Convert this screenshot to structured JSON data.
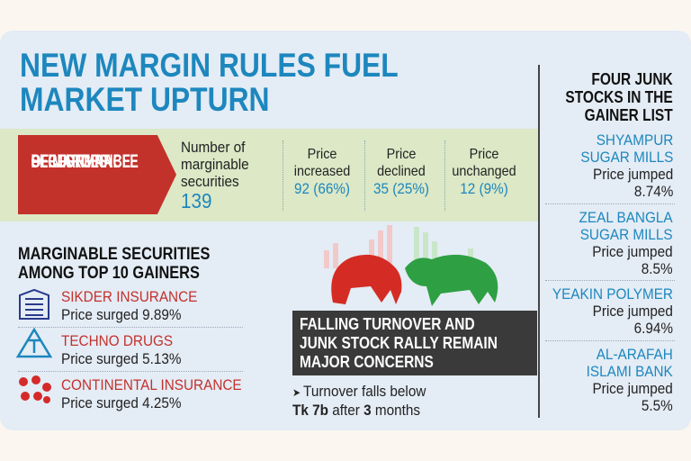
{
  "title": {
    "lines": [
      "NEW MARGIN RULES FUEL",
      "MARKET UPTURN"
    ]
  },
  "performance": {
    "label_lines": [
      "PERFORMANCE",
      "OF MARGINABLE",
      "SECURITIES"
    ],
    "count": {
      "label_lines": [
        "Number of",
        "marginable",
        "securities"
      ],
      "value": "139"
    },
    "stats": [
      {
        "label_lines": [
          "Price",
          "increased"
        ],
        "value": "92 (66%)"
      },
      {
        "label_lines": [
          "Price",
          "declined"
        ],
        "value": "35 (25%)"
      },
      {
        "label_lines": [
          "Price",
          "unchanged"
        ],
        "value": "12 (9%)"
      }
    ]
  },
  "gainers": {
    "heading_lines": [
      "MARGINABLE SECURITIES",
      "AMONG TOP 10 GAINERS"
    ],
    "items": [
      {
        "name": "SIKDER INSURANCE",
        "text": "Price surged",
        "change": "9.89%"
      },
      {
        "name": "TECHNO DRUGS",
        "text": "Price surged",
        "change": "5.13%"
      },
      {
        "name": "CONTINENTAL INSURANCE",
        "text": "Price surged",
        "change": "4.25%"
      }
    ]
  },
  "concerns": {
    "heading_lines": [
      "FALLING TURNOVER AND",
      "JUNK STOCK RALLY REMAIN",
      "MAJOR CONCERNS"
    ],
    "note": {
      "line1": "Turnover falls below",
      "line2": [
        "Tk 7b",
        "after",
        "3",
        "months"
      ]
    }
  },
  "junk": {
    "heading_lines": [
      "FOUR JUNK",
      "STOCKS IN THE",
      "GAINER LIST"
    ],
    "items": [
      {
        "name_lines": [
          "SHYAMPUR",
          "SUGAR MILLS"
        ],
        "text": "Price jumped",
        "change": "8.74%"
      },
      {
        "name_lines": [
          "ZEAL BANGLA",
          "SUGAR MILLS"
        ],
        "text": "Price jumped",
        "change": "8.5%"
      },
      {
        "name_lines": [
          "YEAKIN POLYMER"
        ],
        "text": "Price jumped",
        "change": "6.94%"
      },
      {
        "name_lines": [
          "AL-ARAFAH",
          "ISLAMI BANK"
        ],
        "text": "Price jumped",
        "change": "5.5%"
      }
    ]
  }
}
